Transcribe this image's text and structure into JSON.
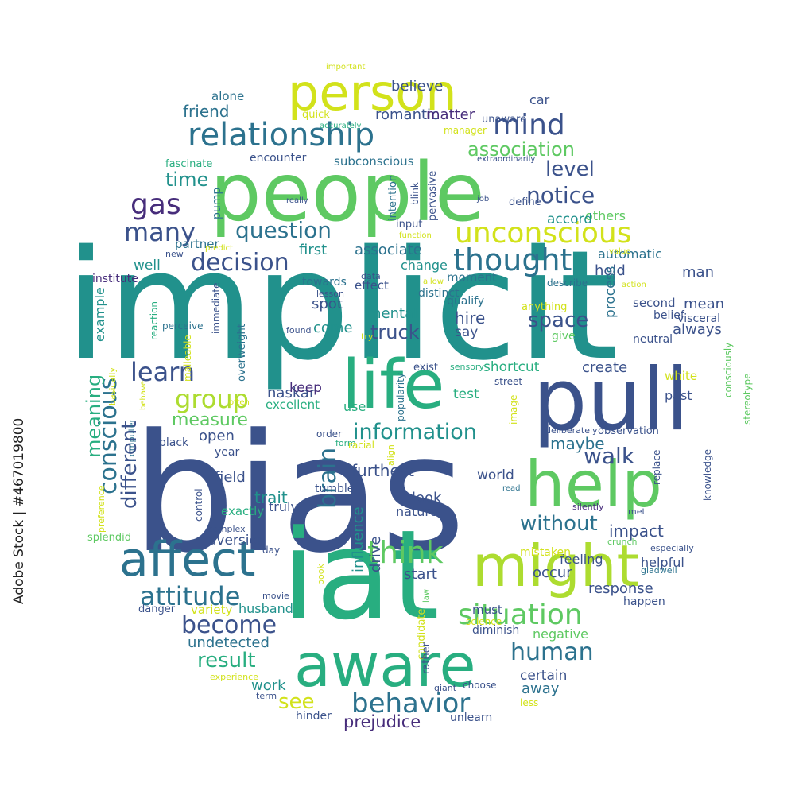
{
  "stock_id": "Adobe Stock | #467019800",
  "palette": {
    "navy": "#3b528b",
    "teal": "#21918c",
    "sea": "#2c728e",
    "green": "#5ec962",
    "lime": "#addc30",
    "yellow": "#d2e21b",
    "purple": "#472d7b",
    "jade": "#28ae80"
  },
  "words": [
    "implicit",
    "bias",
    "people",
    "iat",
    "pull",
    "life",
    "aware",
    "help",
    "might",
    "person",
    "affect",
    "relationship",
    "unconscious",
    "thought",
    "conscious",
    "think",
    "situation",
    "behavior",
    "attitude",
    "mind",
    "association",
    "decision",
    "notice",
    "gas",
    "learn",
    "information",
    "group",
    "question",
    "brain",
    "without",
    "human",
    "level",
    "walk",
    "different",
    "measure",
    "become",
    "meaning",
    "many",
    "time",
    "result",
    "friend",
    "prejudice",
    "space",
    "truck",
    "maybe",
    "see",
    "impact",
    "response",
    "undetected",
    "husband",
    "romantic",
    "matter",
    "believe",
    "car",
    "alone",
    "quick",
    "manager",
    "unaware",
    "accurately",
    "extraordinarily",
    "important",
    "subconscious",
    "fascinate",
    "encounter",
    "blink",
    "pervasive",
    "intention",
    "define",
    "really",
    "job",
    "pump",
    "input",
    "partner",
    "new",
    "predict",
    "function",
    "associate",
    "first",
    "others",
    "accord",
    "automatic",
    "hold",
    "man",
    "change",
    "moment",
    "well",
    "institute",
    "data",
    "allow",
    "describe",
    "process",
    "effect",
    "lesson",
    "towards",
    "distinct",
    "qualify",
    "action",
    "value",
    "mean",
    "second",
    "example",
    "reaction",
    "perceive",
    "immediate",
    "overweight",
    "malleable",
    "spot",
    "hire",
    "mental",
    "anything",
    "belief",
    "visceral",
    "always",
    "say",
    "give",
    "neutral",
    "come",
    "found",
    "try",
    "shortcut",
    "sensory",
    "exist",
    "create",
    "naskar",
    "often",
    "basically",
    "behave",
    "street",
    "white",
    "consciously",
    "stereotype",
    "keep",
    "popularity",
    "test",
    "past",
    "excellent",
    "use",
    "image",
    "computer",
    "black",
    "open",
    "order",
    "deliberately",
    "observation",
    "form",
    "year",
    "racial",
    "preference",
    "field",
    "furthest",
    "align",
    "world",
    "knowledge",
    "replace",
    "read",
    "control",
    "trait",
    "tumble",
    "truly",
    "exactly",
    "look",
    "nature",
    "silently",
    "met",
    "splendid",
    "complex",
    "aversion",
    "crunch",
    "feeling",
    "mistaken",
    "especially",
    "day",
    "helpful",
    "gladwell",
    "influence",
    "drive",
    "start",
    "occur",
    "book",
    "movie",
    "law",
    "candidate",
    "danger",
    "variety",
    "must",
    "negative",
    "science",
    "happen",
    "rather",
    "diminish",
    "experience",
    "giant",
    "work",
    "choose",
    "certain",
    "away",
    "term",
    "less",
    "hinder",
    "unlearn"
  ]
}
